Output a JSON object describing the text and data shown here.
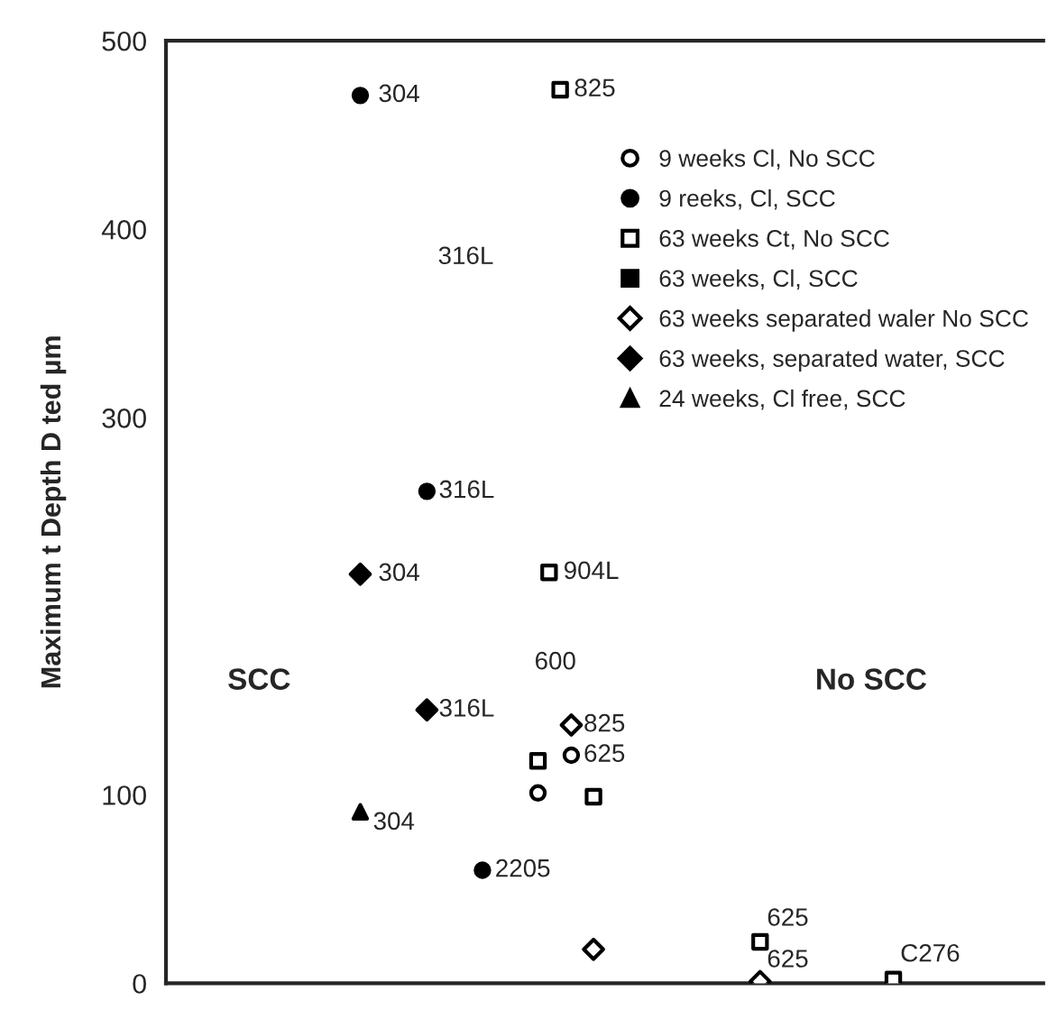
{
  "chart_data": {
    "type": "scatter",
    "ylabel": "Maximum t Depth D ted µm",
    "categories": [
      null,
      null,
      null,
      null,
      null,
      null,
      null,
      null,
      null,
      null,
      null,
      null,
      null,
      null,
      null,
      null,
      null,
      null,
      null,
      null,
      null,
      null,
      null,
      null,
      null,
      null,
      null,
      null,
      null,
      null,
      null,
      null,
      null,
      null,
      null,
      null,
      null,
      null,
      null,
      null,
      null,
      null,
      null,
      null,
      null,
      null,
      null,
      null,
      null,
      null,
      null,
      null,
      null,
      null,
      null,
      null,
      null,
      null,
      null,
      null,
      null,
      null,
      null,
      null,
      null,
      null,
      null,
      null,
      null,
      null,
      null,
      null,
      null,
      null,
      null,
      null,
      null,
      null,
      null
    ],
    "ylim": [
      0,
      500
    ],
    "yticks": [
      0,
      100,
      300,
      400,
      500
    ],
    "tick_labels": "y",
    "grid": false,
    "legend": "top right",
    "series": [
      {
        "name": "9 weeks Cl, No SCC",
        "color": "#000000",
        "marker": "circle-open",
        "values": [
          null,
          null,
          null,
          null,
          null,
          null,
          null,
          null,
          null,
          null,
          null,
          null,
          null,
          null,
          null,
          null,
          null,
          null,
          null,
          null,
          null,
          null,
          null,
          null,
          null,
          null,
          null,
          null,
          null,
          null,
          null,
          null,
          null,
          101,
          null,
          null,
          121,
          null,
          null,
          null,
          null,
          null,
          null,
          null,
          null,
          null,
          null,
          null,
          null,
          null,
          null,
          null,
          null,
          null,
          null,
          null,
          null,
          null,
          null,
          null,
          null,
          null,
          null,
          null,
          null,
          null,
          null,
          null,
          null,
          null,
          null,
          null,
          null,
          null,
          null,
          null,
          null,
          null,
          null
        ]
      },
      {
        "name": "9 reeks, Cl, SCC",
        "color": "#000000",
        "marker": "circle",
        "values": [
          null,
          null,
          null,
          null,
          null,
          null,
          null,
          null,
          null,
          null,
          null,
          null,
          null,
          null,
          null,
          null,
          null,
          471,
          null,
          null,
          null,
          null,
          null,
          261,
          null,
          null,
          null,
          null,
          60,
          null,
          null,
          null,
          null,
          null,
          null,
          null,
          null,
          null,
          null,
          null,
          null,
          null,
          null,
          null,
          null,
          null,
          null,
          null,
          null,
          null,
          null,
          null,
          null,
          null,
          null,
          null,
          null,
          null,
          null,
          null,
          null,
          null,
          null,
          null,
          null,
          null,
          null,
          null,
          null,
          null,
          null,
          null,
          null,
          null,
          null,
          null,
          null,
          null,
          null
        ]
      },
      {
        "name": "63 weeks Ct, No SCC",
        "color": "#000000",
        "marker": "square-open",
        "values": [
          null,
          null,
          null,
          null,
          null,
          null,
          null,
          null,
          null,
          null,
          null,
          null,
          null,
          null,
          null,
          null,
          null,
          null,
          null,
          null,
          null,
          null,
          null,
          null,
          null,
          null,
          null,
          null,
          null,
          null,
          null,
          null,
          null,
          118,
          218,
          474,
          null,
          null,
          99,
          null,
          null,
          null,
          null,
          null,
          null,
          null,
          null,
          null,
          null,
          null,
          null,
          null,
          null,
          22,
          null,
          null,
          null,
          null,
          null,
          null,
          null,
          null,
          null,
          null,
          null,
          2,
          null,
          null,
          null,
          null,
          null,
          null,
          null,
          null,
          null,
          null,
          null,
          null,
          null
        ]
      },
      {
        "name": "63 weeks, Cl, SCC",
        "color": "#000000",
        "marker": "square",
        "values": [
          null,
          null,
          null,
          null,
          null,
          null,
          null,
          null,
          null,
          null,
          null,
          null,
          null,
          null,
          null,
          null,
          null,
          null,
          null,
          null,
          null,
          null,
          null,
          null,
          null,
          null,
          null,
          null,
          null,
          null,
          null,
          null,
          null,
          null,
          null,
          null,
          null,
          null,
          null,
          null,
          null,
          null,
          null,
          null,
          null,
          null,
          null,
          null,
          null,
          null,
          null,
          null,
          null,
          null,
          null,
          null,
          null,
          null,
          null,
          null,
          null,
          null,
          null,
          null,
          null,
          null,
          null,
          null,
          null,
          null,
          null,
          null,
          null,
          null,
          null,
          null,
          null,
          null,
          null
        ]
      },
      {
        "name": "63 weeks separated waler No SCC",
        "color": "#000000",
        "marker": "diamond-open",
        "values": [
          null,
          null,
          null,
          null,
          null,
          null,
          null,
          null,
          null,
          null,
          null,
          null,
          null,
          null,
          null,
          null,
          null,
          null,
          null,
          null,
          null,
          null,
          null,
          null,
          null,
          null,
          null,
          null,
          null,
          null,
          null,
          null,
          null,
          null,
          null,
          null,
          137,
          null,
          18,
          null,
          null,
          null,
          null,
          null,
          null,
          null,
          null,
          null,
          null,
          null,
          null,
          null,
          null,
          1,
          null,
          null,
          null,
          null,
          null,
          null,
          null,
          null,
          null,
          null,
          null,
          null,
          null,
          null,
          null,
          null,
          null,
          null,
          null,
          null,
          null,
          null,
          null,
          null,
          null
        ]
      },
      {
        "name": "63 weeks, separated water, SCC",
        "color": "#000000",
        "marker": "diamond",
        "values": [
          null,
          null,
          null,
          null,
          null,
          null,
          null,
          null,
          null,
          null,
          null,
          null,
          null,
          null,
          null,
          null,
          null,
          217,
          null,
          null,
          null,
          null,
          null,
          145,
          null,
          null,
          null,
          null,
          null,
          null,
          null,
          null,
          null,
          null,
          null,
          null,
          null,
          null,
          null,
          null,
          null,
          null,
          null,
          null,
          null,
          null,
          null,
          null,
          null,
          null,
          null,
          null,
          null,
          null,
          null,
          null,
          null,
          null,
          null,
          null,
          null,
          null,
          null,
          null,
          null,
          null,
          null,
          null,
          null,
          null,
          null,
          null,
          null,
          null,
          null,
          null,
          null,
          null,
          null
        ]
      },
      {
        "name": "24 weeks, Cl free, SCC",
        "color": "#000000",
        "marker": "triangle",
        "values": [
          null,
          null,
          null,
          null,
          null,
          null,
          null,
          null,
          null,
          null,
          null,
          null,
          null,
          null,
          null,
          null,
          null,
          91,
          null,
          null,
          null,
          null,
          null,
          null,
          null,
          null,
          null,
          null,
          null,
          null,
          null,
          null,
          null,
          null,
          null,
          null,
          null,
          null,
          null,
          null,
          null,
          null,
          null,
          null,
          null,
          null,
          null,
          null,
          null,
          null,
          null,
          null,
          null,
          null,
          null,
          null,
          null,
          null,
          null,
          null,
          null,
          null,
          null,
          null,
          null,
          null,
          null,
          null,
          null,
          null,
          null,
          null,
          null,
          null,
          null,
          null,
          null,
          null,
          null
        ]
      }
    ],
    "annotations": [
      "304",
      "825",
      "316L",
      "304",
      "904L",
      "316L",
      "825",
      "625",
      "304",
      "2205",
      "625",
      "625",
      "C276",
      "316L",
      "600",
      "SCC",
      "No SCC"
    ]
  }
}
